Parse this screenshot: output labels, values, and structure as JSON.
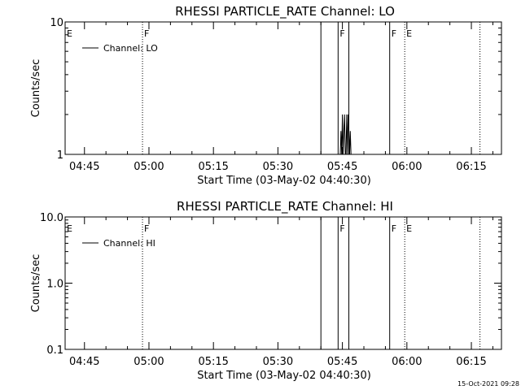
{
  "footer": {
    "timestamp": "15-Oct-2021 09:28"
  },
  "chart_data": [
    {
      "type": "line",
      "title": "RHESSI PARTICLE_RATE Channel: LO",
      "xlabel": "Start Time (03-May-02 04:40:30)",
      "ylabel": "Counts/sec",
      "yscale": "log",
      "ylim": [
        1,
        10
      ],
      "ytick_labels": [
        "1",
        "10"
      ],
      "ytick_values": [
        1,
        10
      ],
      "xlim": [
        "04:40:30",
        "06:22:00"
      ],
      "xtick_labels": [
        "04:45",
        "05:00",
        "05:15",
        "05:30",
        "05:45",
        "06:00",
        "06:15"
      ],
      "grid": false,
      "legend": {
        "position": "top-left",
        "entries": [
          "Channel: LO"
        ]
      },
      "flags": [
        {
          "label": "E",
          "time": "04:40:30",
          "style": "none"
        },
        {
          "label": "F",
          "time": "04:58:30",
          "style": "dotted"
        },
        {
          "label": "",
          "time": "05:40:00",
          "style": "solid"
        },
        {
          "label": "F",
          "time": "05:44:00",
          "style": "solid"
        },
        {
          "label": "",
          "time": "05:46:30",
          "style": "solid"
        },
        {
          "label": "F",
          "time": "05:56:00",
          "style": "solid"
        },
        {
          "label": "E",
          "time": "05:59:30",
          "style": "dotted"
        },
        {
          "label": "",
          "time": "06:17:00",
          "style": "dotted"
        }
      ],
      "series": [
        {
          "x": [
            "05:44:30",
            "05:44:40",
            "05:44:50",
            "05:45:00",
            "05:45:10",
            "05:45:20",
            "05:45:30",
            "05:45:40",
            "05:45:50",
            "05:46:00",
            "05:46:10",
            "05:46:20",
            "05:46:30",
            "05:46:40",
            "05:46:50",
            "05:47:00"
          ],
          "y": [
            1,
            1.5,
            1,
            2,
            1,
            1.5,
            2,
            1,
            1,
            2,
            1,
            2,
            1.5,
            1,
            1.5,
            1
          ]
        }
      ]
    },
    {
      "type": "line",
      "title": "RHESSI PARTICLE_RATE Channel: HI",
      "xlabel": "Start Time (03-May-02 04:40:30)",
      "ylabel": "Counts/sec",
      "yscale": "log",
      "ylim": [
        0.1,
        10
      ],
      "ytick_labels": [
        "0.1",
        "1.0",
        "10.0"
      ],
      "ytick_values": [
        0.1,
        1,
        10
      ],
      "xlim": [
        "04:40:30",
        "06:22:00"
      ],
      "xtick_labels": [
        "04:45",
        "05:00",
        "05:15",
        "05:30",
        "05:45",
        "06:00",
        "06:15"
      ],
      "grid": false,
      "legend": {
        "position": "top-left",
        "entries": [
          "Channel: HI"
        ]
      },
      "flags": [
        {
          "label": "E",
          "time": "04:40:30",
          "style": "none"
        },
        {
          "label": "F",
          "time": "04:58:30",
          "style": "dotted"
        },
        {
          "label": "",
          "time": "05:40:00",
          "style": "solid"
        },
        {
          "label": "F",
          "time": "05:44:00",
          "style": "solid"
        },
        {
          "label": "",
          "time": "05:46:30",
          "style": "solid"
        },
        {
          "label": "F",
          "time": "05:56:00",
          "style": "solid"
        },
        {
          "label": "E",
          "time": "05:59:30",
          "style": "dotted"
        },
        {
          "label": "",
          "time": "06:17:00",
          "style": "dotted"
        }
      ],
      "series": []
    }
  ]
}
